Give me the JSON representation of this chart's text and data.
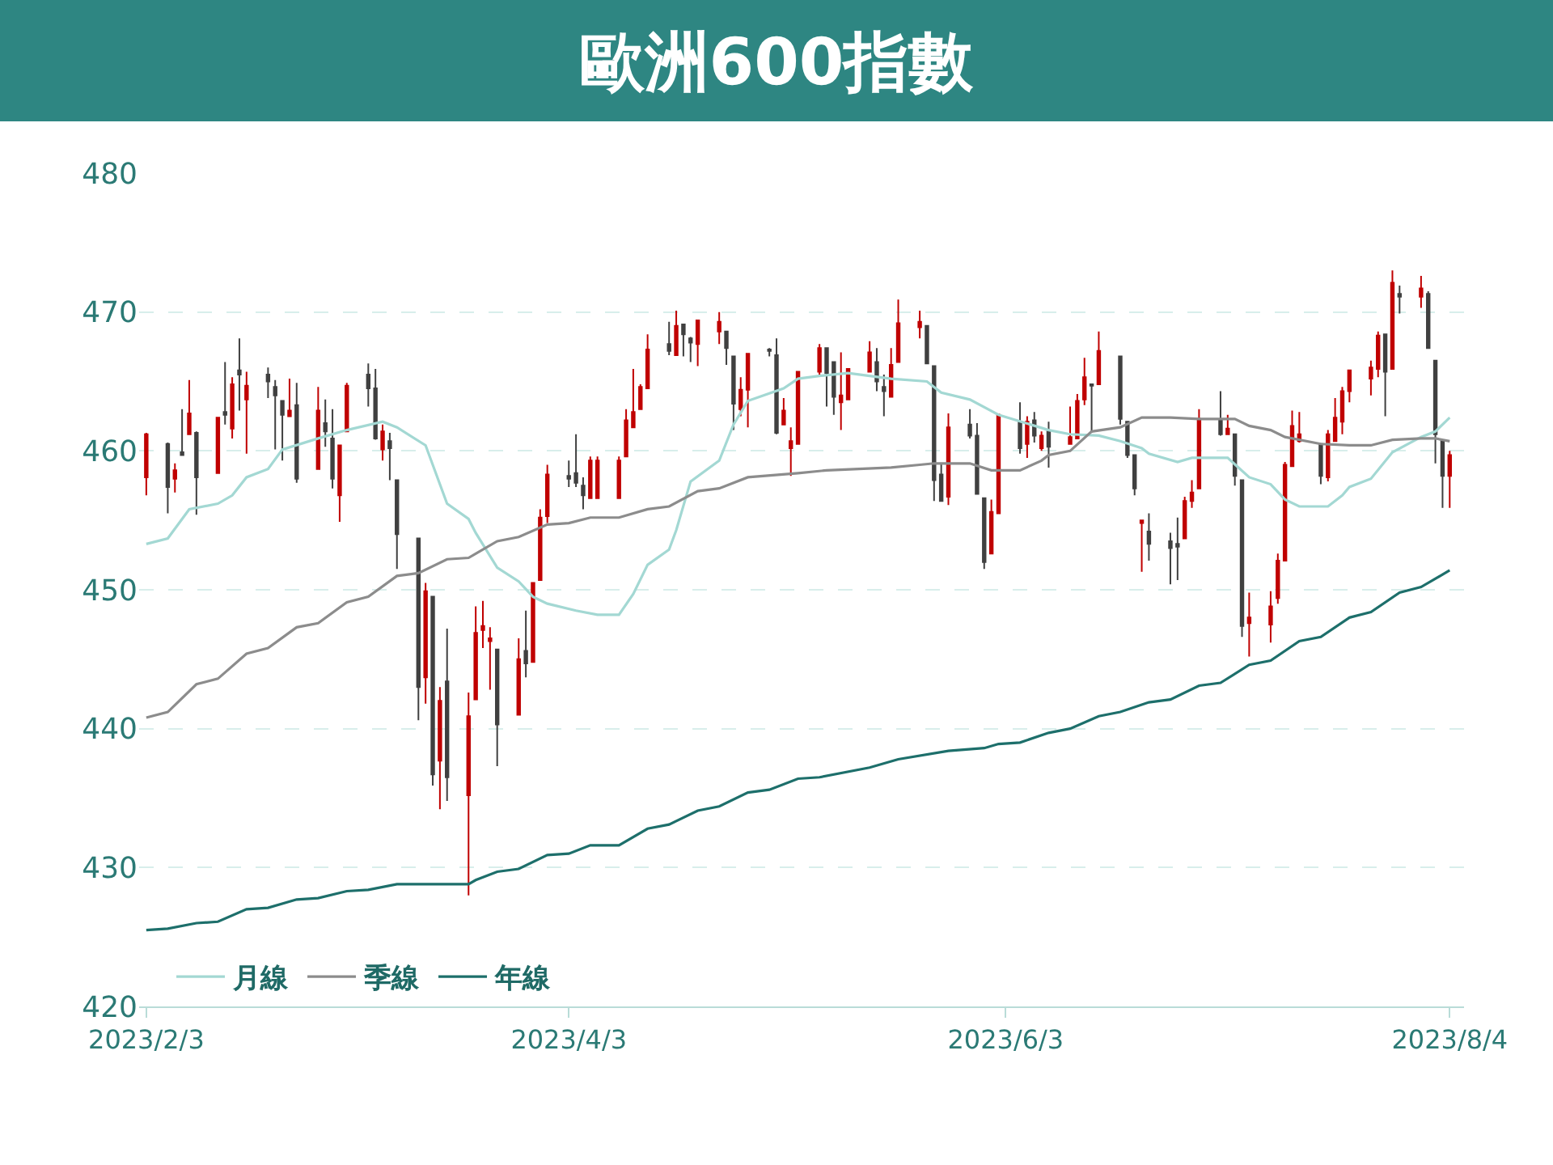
{
  "chart_data": {
    "type": "candlestick",
    "title": "歐洲600指數",
    "x": [
      "2023-02-03",
      "2023-02-06",
      "2023-02-07",
      "2023-02-08",
      "2023-02-09",
      "2023-02-10",
      "2023-02-13",
      "2023-02-14",
      "2023-02-15",
      "2023-02-16",
      "2023-02-17",
      "2023-02-20",
      "2023-02-21",
      "2023-02-22",
      "2023-02-23",
      "2023-02-24",
      "2023-02-27",
      "2023-02-28",
      "2023-03-01",
      "2023-03-02",
      "2023-03-03",
      "2023-03-06",
      "2023-03-07",
      "2023-03-08",
      "2023-03-09",
      "2023-03-10",
      "2023-03-13",
      "2023-03-14",
      "2023-03-15",
      "2023-03-16",
      "2023-03-17",
      "2023-03-20",
      "2023-03-21",
      "2023-03-22",
      "2023-03-23",
      "2023-03-24",
      "2023-03-27",
      "2023-03-28",
      "2023-03-29",
      "2023-03-30",
      "2023-03-31",
      "2023-04-03",
      "2023-04-04",
      "2023-04-05",
      "2023-04-06",
      "2023-04-07",
      "2023-04-10",
      "2023-04-11",
      "2023-04-12",
      "2023-04-13",
      "2023-04-14",
      "2023-04-17",
      "2023-04-18",
      "2023-04-19",
      "2023-04-20",
      "2023-04-21",
      "2023-04-24",
      "2023-04-25",
      "2023-04-26",
      "2023-04-27",
      "2023-04-28",
      "2023-05-01",
      "2023-05-02",
      "2023-05-03",
      "2023-05-04",
      "2023-05-05",
      "2023-05-08",
      "2023-05-09",
      "2023-05-10",
      "2023-05-11",
      "2023-05-12",
      "2023-05-15",
      "2023-05-16",
      "2023-05-17",
      "2023-05-18",
      "2023-05-19",
      "2023-05-22",
      "2023-05-23",
      "2023-05-24",
      "2023-05-25",
      "2023-05-26",
      "2023-05-29",
      "2023-05-30",
      "2023-05-31",
      "2023-06-01",
      "2023-06-02",
      "2023-06-05",
      "2023-06-06",
      "2023-06-07",
      "2023-06-08",
      "2023-06-09",
      "2023-06-12",
      "2023-06-13",
      "2023-06-14",
      "2023-06-15",
      "2023-06-16",
      "2023-06-19",
      "2023-06-20",
      "2023-06-21",
      "2023-06-22",
      "2023-06-23",
      "2023-06-26",
      "2023-06-27",
      "2023-06-28",
      "2023-06-29",
      "2023-06-30",
      "2023-07-03",
      "2023-07-04",
      "2023-07-05",
      "2023-07-06",
      "2023-07-07",
      "2023-07-10",
      "2023-07-11",
      "2023-07-12",
      "2023-07-13",
      "2023-07-14",
      "2023-07-17",
      "2023-07-18",
      "2023-07-19",
      "2023-07-20",
      "2023-07-21",
      "2023-07-24",
      "2023-07-25",
      "2023-07-26",
      "2023-07-27",
      "2023-07-28",
      "2023-07-31",
      "2023-08-01",
      "2023-08-02",
      "2023-08-03",
      "2023-08-04"
    ],
    "ohlc": [
      [
        458.1,
        461.3,
        456.8,
        461.2
      ],
      [
        460.5,
        460.6,
        455.5,
        457.4
      ],
      [
        458.0,
        459.1,
        457.0,
        458.6
      ],
      [
        459.9,
        463.0,
        459.7,
        459.7
      ],
      [
        461.2,
        465.1,
        461.2,
        462.7
      ],
      [
        461.3,
        461.4,
        455.4,
        458.1
      ],
      [
        458.4,
        462.4,
        458.4,
        462.4
      ],
      [
        462.8,
        466.4,
        461.9,
        462.6
      ],
      [
        461.6,
        465.3,
        460.9,
        464.8
      ],
      [
        465.8,
        468.1,
        462.9,
        465.5
      ],
      [
        463.7,
        465.7,
        459.8,
        464.7
      ],
      [
        465.5,
        466.0,
        463.8,
        465.0
      ],
      [
        464.6,
        465.1,
        460.1,
        464.0
      ],
      [
        463.6,
        463.6,
        459.3,
        462.6
      ],
      [
        462.5,
        465.2,
        462.5,
        462.9
      ],
      [
        463.3,
        464.9,
        457.7,
        458.0
      ],
      [
        458.7,
        464.6,
        458.7,
        462.9
      ],
      [
        462.0,
        463.7,
        460.3,
        461.4
      ],
      [
        460.9,
        463.0,
        457.3,
        458.0
      ],
      [
        456.8,
        460.4,
        454.9,
        460.4
      ],
      [
        461.4,
        464.9,
        461.4,
        464.7
      ],
      [
        465.5,
        466.3,
        463.2,
        464.5
      ],
      [
        464.5,
        465.9,
        460.8,
        460.9
      ],
      [
        460.1,
        461.9,
        459.3,
        461.4
      ],
      [
        460.7,
        461.3,
        457.9,
        460.2
      ],
      [
        457.9,
        457.9,
        451.5,
        454.0
      ],
      [
        453.7,
        453.7,
        440.6,
        443.0
      ],
      [
        443.7,
        450.5,
        441.8,
        449.9
      ],
      [
        449.5,
        449.5,
        435.9,
        436.7
      ],
      [
        437.7,
        443.0,
        434.2,
        442.0
      ],
      [
        443.4,
        447.2,
        434.8,
        436.5
      ],
      [
        435.2,
        442.6,
        428.0,
        440.9
      ],
      [
        442.1,
        448.8,
        442.1,
        446.9
      ],
      [
        447.1,
        449.2,
        445.8,
        447.4
      ],
      [
        446.3,
        447.3,
        442.8,
        446.5
      ],
      [
        445.7,
        445.7,
        437.3,
        440.3
      ],
      [
        441.0,
        446.5,
        441.0,
        445.0
      ],
      [
        445.6,
        448.5,
        443.7,
        444.7
      ],
      [
        444.8,
        450.5,
        444.8,
        450.5
      ],
      [
        450.7,
        455.8,
        450.7,
        455.2
      ],
      [
        455.3,
        459.0,
        454.8,
        458.3
      ],
      [
        458.2,
        459.3,
        457.4,
        458.0
      ],
      [
        458.4,
        461.2,
        457.4,
        457.7
      ],
      [
        457.5,
        458.1,
        455.8,
        456.8
      ],
      [
        456.6,
        459.6,
        456.6,
        459.3
      ],
      [
        456.6,
        459.6,
        456.6,
        459.3
      ],
      [
        456.6,
        459.6,
        456.6,
        459.3
      ],
      [
        459.6,
        463.0,
        459.6,
        462.2
      ],
      [
        461.7,
        465.9,
        461.7,
        462.8
      ],
      [
        463.0,
        464.8,
        463.0,
        464.6
      ],
      [
        464.5,
        468.4,
        464.5,
        467.3
      ],
      [
        467.7,
        469.3,
        466.9,
        467.2
      ],
      [
        466.9,
        470.1,
        466.9,
        469.0
      ],
      [
        469.1,
        469.1,
        466.8,
        468.4
      ],
      [
        468.1,
        468.2,
        466.4,
        467.8
      ],
      [
        467.7,
        469.4,
        466.1,
        469.4
      ],
      [
        468.6,
        470.0,
        467.7,
        469.3
      ],
      [
        468.6,
        468.6,
        466.2,
        467.4
      ],
      [
        466.8,
        466.8,
        461.5,
        463.4
      ],
      [
        463.0,
        465.3,
        462.5,
        464.4
      ],
      [
        464.4,
        467.0,
        461.7,
        467.0
      ],
      [
        467.3,
        467.4,
        466.8,
        467.2
      ],
      [
        466.9,
        468.1,
        461.2,
        461.3
      ],
      [
        461.9,
        463.8,
        461.9,
        462.9
      ],
      [
        460.2,
        461.7,
        458.2,
        460.7
      ],
      [
        460.5,
        465.7,
        460.5,
        465.7
      ],
      [
        465.7,
        467.7,
        465.5,
        467.4
      ],
      [
        467.4,
        467.4,
        463.2,
        465.6
      ],
      [
        466.4,
        466.4,
        462.6,
        463.9
      ],
      [
        463.5,
        467.1,
        461.5,
        464.0
      ],
      [
        463.7,
        465.9,
        463.7,
        465.9
      ],
      [
        465.7,
        467.9,
        465.7,
        467.1
      ],
      [
        466.4,
        467.4,
        464.3,
        465.0
      ],
      [
        464.6,
        465.5,
        462.5,
        464.3
      ],
      [
        463.9,
        467.4,
        463.9,
        466.2
      ],
      [
        466.4,
        470.9,
        466.4,
        469.2
      ],
      [
        468.9,
        470.1,
        468.1,
        469.3
      ],
      [
        469.0,
        469.0,
        466.3,
        466.3
      ],
      [
        466.1,
        466.1,
        456.4,
        457.9
      ],
      [
        458.3,
        459.1,
        456.4,
        456.4
      ],
      [
        456.7,
        462.7,
        456.1,
        461.7
      ],
      [
        461.9,
        463.0,
        460.9,
        461.1
      ],
      [
        461.1,
        462.0,
        456.9,
        456.9
      ],
      [
        456.6,
        456.6,
        451.5,
        452.0
      ],
      [
        452.6,
        456.5,
        452.6,
        455.6
      ],
      [
        455.5,
        462.7,
        455.5,
        462.6
      ],
      [
        462.1,
        463.5,
        459.8,
        460.2
      ],
      [
        460.5,
        462.5,
        459.5,
        462.1
      ],
      [
        462.2,
        462.8,
        460.6,
        461.1
      ],
      [
        460.2,
        461.4,
        460.0,
        461.1
      ],
      [
        461.4,
        462.1,
        458.8,
        460.3
      ],
      [
        460.5,
        463.2,
        460.5,
        461.0
      ],
      [
        460.9,
        464.1,
        460.9,
        463.6
      ],
      [
        463.7,
        466.7,
        463.3,
        465.3
      ],
      [
        464.8,
        464.8,
        461.3,
        464.7
      ],
      [
        464.8,
        468.6,
        464.8,
        467.2
      ],
      [
        466.8,
        466.8,
        461.9,
        462.3
      ],
      [
        462.1,
        462.1,
        459.5,
        459.7
      ],
      [
        459.7,
        459.7,
        456.8,
        457.3
      ],
      [
        454.8,
        455.0,
        451.3,
        455.0
      ],
      [
        454.2,
        455.5,
        452.1,
        453.3
      ],
      [
        453.5,
        454.1,
        450.4,
        453.0
      ],
      [
        453.3,
        455.2,
        450.7,
        453.1
      ],
      [
        453.7,
        456.7,
        453.7,
        456.4
      ],
      [
        456.4,
        457.9,
        455.9,
        457.0
      ],
      [
        457.3,
        463.0,
        457.3,
        462.3
      ],
      [
        462.2,
        464.3,
        461.1,
        461.2
      ],
      [
        461.2,
        462.6,
        461.2,
        461.6
      ],
      [
        461.2,
        461.2,
        457.5,
        458.2
      ],
      [
        457.9,
        457.9,
        446.6,
        447.4
      ],
      [
        447.6,
        449.8,
        445.2,
        448.0
      ],
      [
        447.5,
        449.9,
        446.2,
        448.8
      ],
      [
        449.4,
        452.6,
        449.0,
        452.1
      ],
      [
        452.1,
        459.2,
        452.1,
        459.0
      ],
      [
        458.9,
        462.9,
        458.9,
        461.8
      ],
      [
        460.7,
        462.8,
        460.6,
        461.2
      ],
      [
        460.5,
        460.5,
        457.6,
        458.2
      ],
      [
        458.1,
        461.5,
        457.8,
        461.2
      ],
      [
        460.7,
        463.8,
        460.7,
        462.4
      ],
      [
        462.1,
        464.6,
        461.2,
        464.3
      ],
      [
        464.3,
        465.8,
        463.5,
        465.8
      ],
      [
        465.2,
        466.5,
        464.0,
        466.0
      ],
      [
        465.9,
        468.6,
        465.3,
        468.3
      ],
      [
        468.4,
        468.4,
        462.5,
        465.7
      ],
      [
        465.9,
        473.0,
        465.9,
        472.1
      ],
      [
        471.3,
        471.9,
        469.9,
        471.1
      ],
      [
        471.1,
        472.6,
        470.3,
        471.7
      ],
      [
        471.3,
        471.5,
        467.4,
        467.4
      ],
      [
        466.5,
        466.5,
        459.1,
        461.2
      ],
      [
        460.7,
        460.7,
        455.9,
        458.2
      ],
      [
        458.2,
        460.0,
        455.9,
        459.7
      ]
    ],
    "colors": [
      "#c00000",
      "#404040",
      "#c00000",
      "#404040",
      "#c00000",
      "#404040",
      "#c00000",
      "#404040",
      "#c00000",
      "#404040",
      "#c00000",
      "#404040",
      "#404040",
      "#404040",
      "#c00000",
      "#404040",
      "#c00000",
      "#404040",
      "#404040",
      "#c00000",
      "#c00000",
      "#404040",
      "#404040",
      "#c00000",
      "#404040",
      "#404040",
      "#404040",
      "#c00000",
      "#404040",
      "#c00000",
      "#404040",
      "#c00000",
      "#c00000",
      "#c00000",
      "#c00000",
      "#404040",
      "#c00000",
      "#404040",
      "#c00000",
      "#c00000",
      "#c00000",
      "#404040",
      "#404040",
      "#404040",
      "#c00000",
      "#c00000",
      "#c00000",
      "#c00000",
      "#c00000",
      "#c00000",
      "#c00000",
      "#404040",
      "#c00000",
      "#404040",
      "#404040",
      "#c00000",
      "#c00000",
      "#404040",
      "#404040",
      "#c00000",
      "#c00000",
      "#404040",
      "#404040",
      "#c00000",
      "#c00000",
      "#c00000",
      "#c00000",
      "#404040",
      "#404040",
      "#c00000",
      "#c00000",
      "#c00000",
      "#404040",
      "#404040",
      "#c00000",
      "#c00000",
      "#c00000",
      "#404040",
      "#404040",
      "#404040",
      "#c00000",
      "#404040",
      "#404040",
      "#404040",
      "#c00000",
      "#c00000",
      "#404040",
      "#c00000",
      "#404040",
      "#c00000",
      "#404040",
      "#c00000",
      "#c00000",
      "#c00000",
      "#404040",
      "#c00000",
      "#404040",
      "#404040",
      "#404040",
      "#c00000",
      "#404040",
      "#404040",
      "#404040",
      "#c00000",
      "#c00000",
      "#c00000",
      "#404040",
      "#c00000",
      "#404040",
      "#404040",
      "#c00000",
      "#c00000",
      "#c00000",
      "#c00000",
      "#c00000",
      "#c00000",
      "#404040",
      "#c00000",
      "#c00000",
      "#c00000",
      "#c00000",
      "#c00000",
      "#c00000",
      "#404040",
      "#c00000",
      "#404040",
      "#c00000",
      "#404040",
      "#404040",
      "#404040",
      "#c00000"
    ],
    "series": [
      {
        "type": "line",
        "name": "月線",
        "color": "#a3d8d3",
        "x": [
          "2023-02-03",
          "2023-02-06",
          "2023-02-09",
          "2023-02-13",
          "2023-02-15",
          "2023-02-17",
          "2023-02-20",
          "2023-02-22",
          "2023-02-27",
          "2023-03-03",
          "2023-03-08",
          "2023-03-10",
          "2023-03-14",
          "2023-03-17",
          "2023-03-20",
          "2023-03-21",
          "2023-03-24",
          "2023-03-27",
          "2023-03-29",
          "2023-03-31",
          "2023-04-04",
          "2023-04-07",
          "2023-04-10",
          "2023-04-12",
          "2023-04-14",
          "2023-04-17",
          "2023-04-18",
          "2023-04-20",
          "2023-04-24",
          "2023-04-26",
          "2023-04-28",
          "2023-05-03",
          "2023-05-05",
          "2023-05-08",
          "2023-05-12",
          "2023-05-18",
          "2023-05-23",
          "2023-05-25",
          "2023-05-29",
          "2023-06-02",
          "2023-06-09",
          "2023-06-12",
          "2023-06-16",
          "2023-06-19",
          "2023-06-22",
          "2023-06-23",
          "2023-06-27",
          "2023-06-29",
          "2023-07-04",
          "2023-07-07",
          "2023-07-10",
          "2023-07-12",
          "2023-07-14",
          "2023-07-18",
          "2023-07-20",
          "2023-07-21",
          "2023-07-24",
          "2023-07-27",
          "2023-07-31",
          "2023-08-02",
          "2023-08-04"
        ],
        "values": [
          453.3,
          453.7,
          455.8,
          456.2,
          456.8,
          458.1,
          458.7,
          460.1,
          460.9,
          461.5,
          462.1,
          461.7,
          460.4,
          456.2,
          455.1,
          454.1,
          451.6,
          450.6,
          449.5,
          449.0,
          448.5,
          448.2,
          448.2,
          449.7,
          451.8,
          452.9,
          454.3,
          457.8,
          459.3,
          461.9,
          463.6,
          464.5,
          465.2,
          465.4,
          465.6,
          465.2,
          465.0,
          464.2,
          463.7,
          462.6,
          461.5,
          461.2,
          461.1,
          460.7,
          460.2,
          459.8,
          459.2,
          459.5,
          459.5,
          458.1,
          457.6,
          456.5,
          456.0,
          456.0,
          456.8,
          457.4,
          458.0,
          459.9,
          461.0,
          461.4,
          462.4
        ]
      },
      {
        "type": "line",
        "name": "季線",
        "color": "#8c8c8c",
        "x": [
          "2023-02-03",
          "2023-02-06",
          "2023-02-10",
          "2023-02-13",
          "2023-02-17",
          "2023-02-20",
          "2023-02-24",
          "2023-02-27",
          "2023-03-03",
          "2023-03-06",
          "2023-03-10",
          "2023-03-13",
          "2023-03-17",
          "2023-03-20",
          "2023-03-21",
          "2023-03-24",
          "2023-03-27",
          "2023-03-31",
          "2023-04-03",
          "2023-04-06",
          "2023-04-10",
          "2023-04-14",
          "2023-04-17",
          "2023-04-21",
          "2023-04-24",
          "2023-04-28",
          "2023-05-05",
          "2023-05-09",
          "2023-05-18",
          "2023-05-22",
          "2023-05-24",
          "2023-05-29",
          "2023-06-01",
          "2023-06-05",
          "2023-06-08",
          "2023-06-09",
          "2023-06-12",
          "2023-06-15",
          "2023-06-19",
          "2023-06-22",
          "2023-06-26",
          "2023-06-30",
          "2023-07-05",
          "2023-07-07",
          "2023-07-10",
          "2023-07-12",
          "2023-07-17",
          "2023-07-21",
          "2023-07-24",
          "2023-07-27",
          "2023-07-31",
          "2023-08-02",
          "2023-08-04"
        ],
        "values": [
          440.8,
          441.2,
          443.2,
          443.6,
          445.4,
          445.8,
          447.3,
          447.6,
          449.1,
          449.5,
          451.0,
          451.2,
          452.2,
          452.3,
          452.6,
          453.5,
          453.8,
          454.7,
          454.8,
          455.2,
          455.2,
          455.8,
          456.0,
          457.1,
          457.3,
          458.1,
          458.4,
          458.6,
          458.8,
          459.0,
          459.1,
          459.1,
          458.6,
          458.6,
          459.3,
          459.7,
          460.0,
          461.4,
          461.7,
          462.4,
          462.4,
          462.3,
          462.3,
          461.8,
          461.5,
          461.0,
          460.5,
          460.4,
          460.4,
          460.8,
          460.9,
          460.9,
          460.7
        ]
      },
      {
        "type": "line",
        "name": "年線",
        "color": "#1d6f6b",
        "x": [
          "2023-02-03",
          "2023-02-06",
          "2023-02-10",
          "2023-02-13",
          "2023-02-17",
          "2023-02-20",
          "2023-02-24",
          "2023-02-27",
          "2023-03-03",
          "2023-03-06",
          "2023-03-10",
          "2023-03-17",
          "2023-03-20",
          "2023-03-21",
          "2023-03-24",
          "2023-03-27",
          "2023-03-31",
          "2023-04-03",
          "2023-04-06",
          "2023-04-10",
          "2023-04-14",
          "2023-04-17",
          "2023-04-21",
          "2023-04-24",
          "2023-04-28",
          "2023-05-01",
          "2023-05-05",
          "2023-05-08",
          "2023-05-15",
          "2023-05-19",
          "2023-05-26",
          "2023-05-31",
          "2023-06-02",
          "2023-06-05",
          "2023-06-09",
          "2023-06-12",
          "2023-06-16",
          "2023-06-19",
          "2023-06-23",
          "2023-06-26",
          "2023-06-30",
          "2023-07-03",
          "2023-07-07",
          "2023-07-10",
          "2023-07-14",
          "2023-07-17",
          "2023-07-21",
          "2023-07-24",
          "2023-07-28",
          "2023-07-31",
          "2023-08-04"
        ],
        "values": [
          425.5,
          425.6,
          426.0,
          426.1,
          427.0,
          427.1,
          427.7,
          427.8,
          428.3,
          428.4,
          428.8,
          428.8,
          428.8,
          429.1,
          429.7,
          429.9,
          430.9,
          431.0,
          431.6,
          431.6,
          432.8,
          433.1,
          434.1,
          434.4,
          435.4,
          435.6,
          436.4,
          436.5,
          437.2,
          437.8,
          438.4,
          438.6,
          438.9,
          439.0,
          439.7,
          440.0,
          440.9,
          441.2,
          441.9,
          442.1,
          443.1,
          443.3,
          444.6,
          444.9,
          446.3,
          446.6,
          448.0,
          448.4,
          449.8,
          450.2,
          451.4
        ]
      }
    ],
    "xlim": [
      "2023-02-02",
      "2023-08-06"
    ],
    "xticks": [
      {
        "value": "2023-02-03",
        "label": "2023/2/3"
      },
      {
        "value": "2023-04-03",
        "label": "2023/4/3"
      },
      {
        "value": "2023-06-03",
        "label": "2023/6/3"
      },
      {
        "value": "2023-08-04",
        "label": "2023/8/4"
      }
    ],
    "ylim": [
      420,
      480
    ],
    "yticks": [
      420,
      430,
      440,
      450,
      460,
      470,
      480
    ],
    "grid": "y",
    "legend": "bottom left"
  }
}
